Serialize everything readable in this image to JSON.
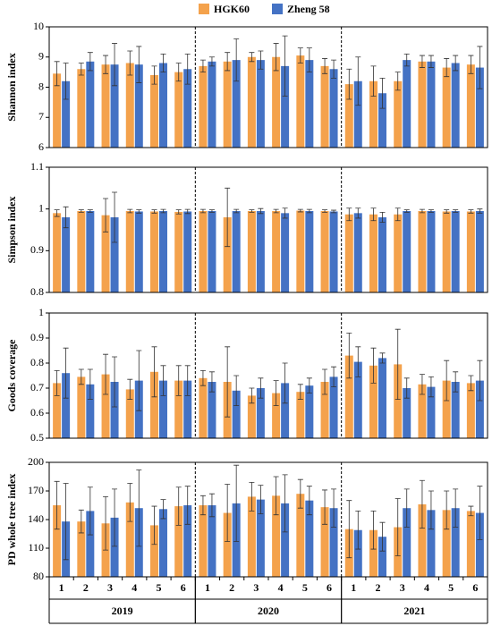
{
  "chart_data": [
    {
      "type": "bar",
      "ylabel": "Shannon index",
      "ylim": [
        6,
        10
      ],
      "yticks": [
        6,
        7,
        8,
        9,
        10
      ],
      "series": [
        {
          "name": "HGK60",
          "color": "#f4a24c",
          "values": [
            8.45,
            8.6,
            8.75,
            8.8,
            8.4,
            8.5,
            8.7,
            8.85,
            9.0,
            9.0,
            9.05,
            8.7,
            8.1,
            8.2,
            8.2,
            8.85,
            8.65,
            8.75
          ],
          "errors": [
            0.4,
            0.2,
            0.3,
            0.4,
            0.3,
            0.3,
            0.2,
            0.3,
            0.15,
            0.45,
            0.25,
            0.25,
            0.5,
            0.5,
            0.3,
            0.2,
            0.3,
            0.3
          ]
        },
        {
          "name": "Zheng 58",
          "color": "#4472c4",
          "values": [
            8.2,
            8.85,
            8.75,
            8.75,
            8.8,
            8.6,
            8.85,
            8.9,
            8.9,
            8.7,
            8.9,
            8.6,
            8.2,
            7.8,
            8.9,
            8.85,
            8.8,
            8.65
          ],
          "errors": [
            0.6,
            0.3,
            0.7,
            0.6,
            0.3,
            0.5,
            0.15,
            0.7,
            0.3,
            1.0,
            0.4,
            0.3,
            0.8,
            0.5,
            0.2,
            0.2,
            0.25,
            0.7
          ]
        }
      ]
    },
    {
      "type": "bar",
      "ylabel": "Simpson index",
      "ylim": [
        0.8,
        1.1
      ],
      "yticks": [
        0.8,
        0.9,
        1,
        1.1
      ],
      "series": [
        {
          "color": "#f4a24c",
          "values": [
            0.99,
            0.995,
            0.985,
            0.995,
            0.994,
            0.993,
            0.995,
            0.98,
            0.995,
            0.995,
            0.996,
            0.995,
            0.987,
            0.987,
            0.987,
            0.995,
            0.994,
            0.994
          ],
          "errors": [
            0.008,
            0.003,
            0.04,
            0.004,
            0.004,
            0.005,
            0.004,
            0.07,
            0.003,
            0.004,
            0.003,
            0.003,
            0.015,
            0.015,
            0.015,
            0.004,
            0.004,
            0.004
          ]
        },
        {
          "color": "#4472c4",
          "values": [
            0.98,
            0.995,
            0.98,
            0.994,
            0.995,
            0.994,
            0.995,
            0.995,
            0.995,
            0.99,
            0.995,
            0.994,
            0.99,
            0.98,
            0.995,
            0.995,
            0.995,
            0.995
          ],
          "errors": [
            0.025,
            0.003,
            0.06,
            0.004,
            0.004,
            0.005,
            0.003,
            0.004,
            0.006,
            0.012,
            0.004,
            0.003,
            0.012,
            0.012,
            0.003,
            0.003,
            0.003,
            0.005
          ]
        }
      ]
    },
    {
      "type": "bar",
      "ylabel": "Goods coverage",
      "ylim": [
        0.5,
        1
      ],
      "yticks": [
        0.5,
        0.6,
        0.7,
        0.8,
        0.9,
        1
      ],
      "series": [
        {
          "color": "#f4a24c",
          "values": [
            0.72,
            0.745,
            0.755,
            0.695,
            0.765,
            0.73,
            0.74,
            0.725,
            0.67,
            0.68,
            0.685,
            0.725,
            0.83,
            0.79,
            0.795,
            0.715,
            0.73,
            0.72
          ],
          "errors": [
            0.05,
            0.03,
            0.08,
            0.04,
            0.1,
            0.06,
            0.03,
            0.14,
            0.03,
            0.05,
            0.03,
            0.05,
            0.09,
            0.07,
            0.14,
            0.04,
            0.08,
            0.03
          ]
        },
        {
          "color": "#4472c4",
          "values": [
            0.76,
            0.715,
            0.725,
            0.73,
            0.73,
            0.73,
            0.725,
            0.69,
            0.7,
            0.72,
            0.71,
            0.745,
            0.805,
            0.82,
            0.7,
            0.705,
            0.725,
            0.73
          ],
          "errors": [
            0.1,
            0.06,
            0.1,
            0.12,
            0.06,
            0.06,
            0.04,
            0.06,
            0.04,
            0.08,
            0.03,
            0.04,
            0.06,
            0.02,
            0.04,
            0.04,
            0.04,
            0.08
          ]
        }
      ]
    },
    {
      "type": "bar",
      "ylabel": "PD whole tree index",
      "ylim": [
        80,
        200
      ],
      "yticks": [
        80,
        110,
        140,
        170,
        200
      ],
      "categories": [
        "1",
        "2",
        "3",
        "4",
        "5",
        "6",
        "1",
        "2",
        "3",
        "4",
        "5",
        "6",
        "1",
        "2",
        "3",
        "4",
        "5",
        "6"
      ],
      "groups": [
        "2019",
        "2020",
        "2021"
      ],
      "series": [
        {
          "color": "#f4a24c",
          "values": [
            155,
            138,
            136,
            158,
            134,
            154,
            155,
            147,
            164,
            165,
            167,
            153,
            130,
            129,
            132,
            156,
            150,
            149
          ],
          "errors": [
            25,
            12,
            28,
            20,
            20,
            20,
            10,
            30,
            15,
            20,
            15,
            18,
            30,
            20,
            30,
            25,
            20,
            5
          ]
        },
        {
          "color": "#4472c4",
          "values": [
            138,
            149,
            142,
            152,
            151,
            155,
            155,
            157,
            161,
            157,
            160,
            152,
            129,
            122,
            152,
            150,
            152,
            147
          ],
          "errors": [
            40,
            25,
            30,
            40,
            10,
            20,
            12,
            40,
            15,
            30,
            15,
            20,
            20,
            15,
            20,
            20,
            20,
            28
          ]
        }
      ]
    }
  ]
}
